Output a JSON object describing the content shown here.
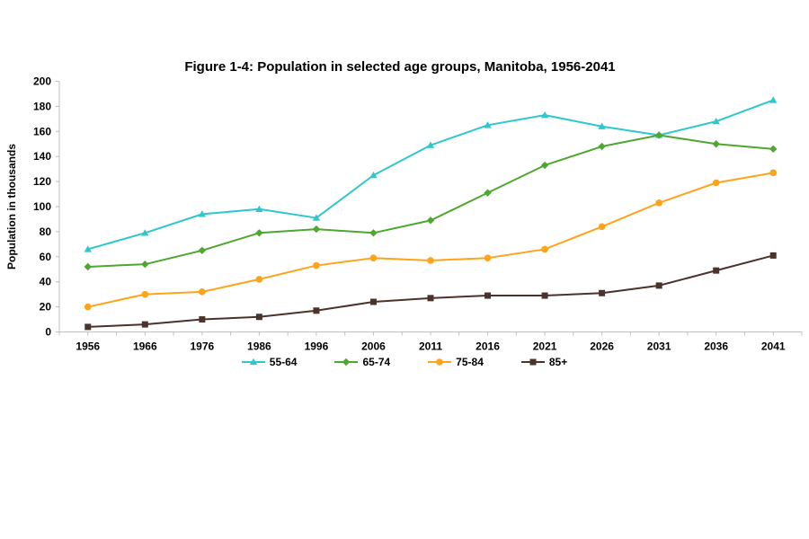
{
  "chart_data": {
    "type": "line",
    "title": "Figure 1-4: Population in selected age groups, Manitoba, 1956-2041",
    "xlabel": "",
    "ylabel": "Population in thousands",
    "ylim": [
      0,
      200
    ],
    "ytick_step": 20,
    "grid": false,
    "legend_position": "bottom",
    "axis_color": "#BFBFBF",
    "text_color": "#000000",
    "background_color": "#FFFFFF",
    "categories": [
      "1956",
      "1966",
      "1976",
      "1986",
      "1996",
      "2006",
      "2011",
      "2016",
      "2021",
      "2026",
      "2031",
      "2036",
      "2041"
    ],
    "series": [
      {
        "name": "55-64",
        "color": "#2EC7CD",
        "marker": "triangle",
        "values": [
          66,
          79,
          94,
          98,
          91,
          125,
          149,
          165,
          173,
          164,
          157,
          168,
          185
        ]
      },
      {
        "name": "65-74",
        "color": "#4EA72E",
        "marker": "diamond",
        "values": [
          52,
          54,
          65,
          79,
          82,
          79,
          89,
          111,
          133,
          148,
          157,
          150,
          146
        ]
      },
      {
        "name": "75-84",
        "color": "#FFA31A",
        "marker": "circle",
        "values": [
          20,
          30,
          32,
          42,
          53,
          59,
          57,
          59,
          66,
          84,
          103,
          119,
          127
        ]
      },
      {
        "name": "85+",
        "color": "#4A332B",
        "marker": "square",
        "values": [
          4,
          6,
          10,
          12,
          17,
          24,
          27,
          29,
          29,
          31,
          37,
          49,
          61
        ]
      }
    ],
    "yticks": [
      0,
      20,
      40,
      60,
      80,
      100,
      120,
      140,
      160,
      180,
      200
    ]
  }
}
